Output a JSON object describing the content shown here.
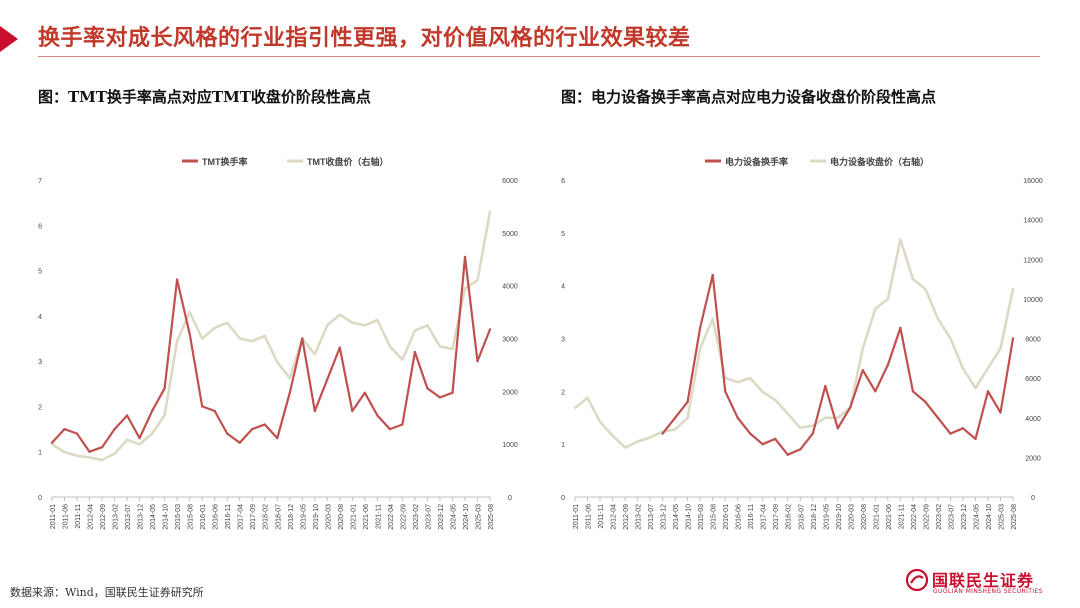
{
  "page": {
    "title": "换手率对成长风格的行业指引性更强，对价值风格的行业效果较差",
    "source": "数据来源：Wind，国联民生证券研究所",
    "logo_text": "国联民生证券",
    "logo_subtext": "GUOLIAN MINSHENG SECURITIES",
    "accent_color": "#c0392b"
  },
  "chart_data": [
    {
      "type": "line",
      "heading": "图：TMT换手率高点对应TMT收盘价阶段性高点",
      "x": [
        "2011-01",
        "2011-06",
        "2011-11",
        "2012-04",
        "2012-09",
        "2013-02",
        "2013-07",
        "2013-12",
        "2014-05",
        "2014-10",
        "2015-03",
        "2015-08",
        "2016-01",
        "2016-06",
        "2016-11",
        "2017-04",
        "2017-09",
        "2018-02",
        "2018-07",
        "2018-12",
        "2019-05",
        "2019-10",
        "2020-03",
        "2020-08",
        "2021-01",
        "2021-06",
        "2021-11",
        "2022-04",
        "2022-09",
        "2023-02",
        "2023-07",
        "2023-12",
        "2024-05",
        "2024-10",
        "2025-03",
        "2025-08"
      ],
      "y_left": {
        "range": [
          0,
          7
        ],
        "ticks": [
          "0",
          "1",
          "2",
          "3",
          "4",
          "5",
          "6",
          "7"
        ]
      },
      "y_right": {
        "range": [
          0,
          6000
        ],
        "ticks": [
          "0",
          "1000",
          "2000",
          "3000",
          "4000",
          "5000",
          "6000"
        ]
      },
      "series": [
        {
          "name": "TMT换手率",
          "axis": "left",
          "color": "#c0504d",
          "values": [
            1.2,
            1.5,
            1.4,
            1.0,
            1.1,
            1.5,
            1.8,
            1.3,
            1.9,
            2.4,
            4.8,
            3.6,
            2.0,
            1.9,
            1.4,
            1.2,
            1.5,
            1.6,
            1.3,
            2.3,
            3.5,
            1.9,
            2.6,
            3.3,
            1.9,
            2.3,
            1.8,
            1.5,
            1.6,
            3.2,
            2.4,
            2.2,
            2.3,
            5.3,
            3.0,
            3.7
          ]
        },
        {
          "name": "TMT收盘价（右轴）",
          "axis": "right",
          "color": "#ddd9c4",
          "values": [
            1000,
            850,
            780,
            750,
            700,
            820,
            1080,
            1000,
            1200,
            1550,
            2950,
            3500,
            3000,
            3200,
            3300,
            3000,
            2950,
            3050,
            2550,
            2250,
            3000,
            2700,
            3250,
            3450,
            3300,
            3250,
            3350,
            2850,
            2600,
            3150,
            3250,
            2850,
            2800,
            3950,
            4100,
            5400
          ]
        }
      ]
    },
    {
      "type": "line",
      "heading": "图：电力设备换手率高点对应电力设备收盘价阶段性高点",
      "x": [
        "2011-01",
        "2011-06",
        "2011-11",
        "2012-04",
        "2012-09",
        "2013-02",
        "2013-07",
        "2013-12",
        "2014-05",
        "2014-10",
        "2015-03",
        "2015-08",
        "2016-01",
        "2016-06",
        "2016-11",
        "2017-04",
        "2017-09",
        "2018-02",
        "2018-07",
        "2018-12",
        "2019-05",
        "2019-10",
        "2020-03",
        "2020-08",
        "2021-01",
        "2021-06",
        "2021-11",
        "2022-04",
        "2022-09",
        "2023-02",
        "2023-07",
        "2023-12",
        "2024-05",
        "2024-10",
        "2025-03",
        "2025-08"
      ],
      "y_left": {
        "range": [
          0,
          6
        ],
        "ticks": [
          "0",
          "1",
          "2",
          "3",
          "4",
          "5",
          "6"
        ]
      },
      "y_right": {
        "range": [
          0,
          16000
        ],
        "ticks": [
          "0",
          "2000",
          "4000",
          "6000",
          "8000",
          "10000",
          "12000",
          "14000",
          "16000"
        ]
      },
      "series": [
        {
          "name": "电力设备换手率",
          "axis": "left",
          "color": "#c0504d",
          "values": [
            null,
            null,
            null,
            null,
            null,
            null,
            null,
            1.2,
            1.5,
            1.8,
            3.2,
            4.2,
            2.0,
            1.5,
            1.2,
            1.0,
            1.1,
            0.8,
            0.9,
            1.2,
            2.1,
            1.3,
            1.7,
            2.4,
            2.0,
            2.5,
            3.2,
            2.0,
            1.8,
            1.5,
            1.2,
            1.3,
            1.1,
            2.0,
            1.6,
            3.0
          ]
        },
        {
          "name": "电力设备收盘价（右轴）",
          "axis": "right",
          "color": "#ddd9c4",
          "values": [
            4500,
            5000,
            3800,
            3100,
            2500,
            2800,
            3000,
            3300,
            3400,
            4000,
            7500,
            9000,
            6000,
            5800,
            6000,
            5300,
            4900,
            4200,
            3500,
            3600,
            4000,
            4000,
            4500,
            7500,
            9500,
            10000,
            13000,
            11000,
            10500,
            9000,
            8000,
            6500,
            5500,
            6500,
            7500,
            10500
          ]
        }
      ]
    }
  ]
}
